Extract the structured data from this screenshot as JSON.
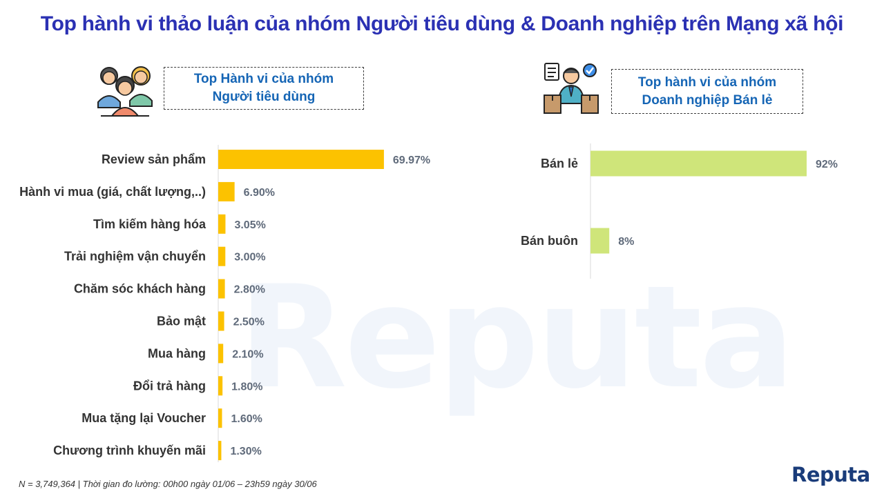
{
  "title": "Top hành vi thảo luận của nhóm Người tiêu dùng & Doanh nghiệp trên Mạng xã hội",
  "watermark": "Reputa",
  "left_panel": {
    "heading_line1": "Top Hành vi của nhóm",
    "heading_line2": "Người tiêu dùng",
    "icon": "consumer-group-icon"
  },
  "right_panel": {
    "heading_line1": "Top hành vi của nhóm",
    "heading_line2": "Doanh nghiệp Bán lẻ",
    "icon": "retail-business-icon"
  },
  "chart_data": [
    {
      "type": "bar",
      "orientation": "horizontal",
      "color": "#fcc200",
      "categories": [
        "Review sản phẩm",
        "Hành vi mua (giá, chất lượng,..)",
        "Tìm kiếm hàng hóa",
        "Trải nghiệm vận chuyển",
        "Chăm sóc khách hàng",
        "Bảo mật",
        "Mua hàng",
        "Đổi trả hàng",
        "Mua tặng lại Voucher",
        "Chương trình khuyến mãi"
      ],
      "values": [
        69.97,
        6.9,
        3.05,
        3.0,
        2.8,
        2.5,
        2.1,
        1.8,
        1.6,
        1.3
      ],
      "value_labels": [
        "69.97%",
        "6.90%",
        "3.05%",
        "3.00%",
        "2.80%",
        "2.50%",
        "2.10%",
        "1.80%",
        "1.60%",
        "1.30%"
      ],
      "xlim": [
        0,
        70
      ]
    },
    {
      "type": "bar",
      "orientation": "horizontal",
      "color": "#cfe57a",
      "categories": [
        "Bán lẻ",
        "Bán buôn"
      ],
      "values": [
        92,
        8
      ],
      "value_labels": [
        "92%",
        "8%"
      ],
      "xlim": [
        0,
        92
      ]
    }
  ],
  "footnote": "N = 3,749,364 | Thời gian đo lường: 00h00 ngày 01/06 – 23h59 ngày 30/06",
  "logo": "Reputa"
}
